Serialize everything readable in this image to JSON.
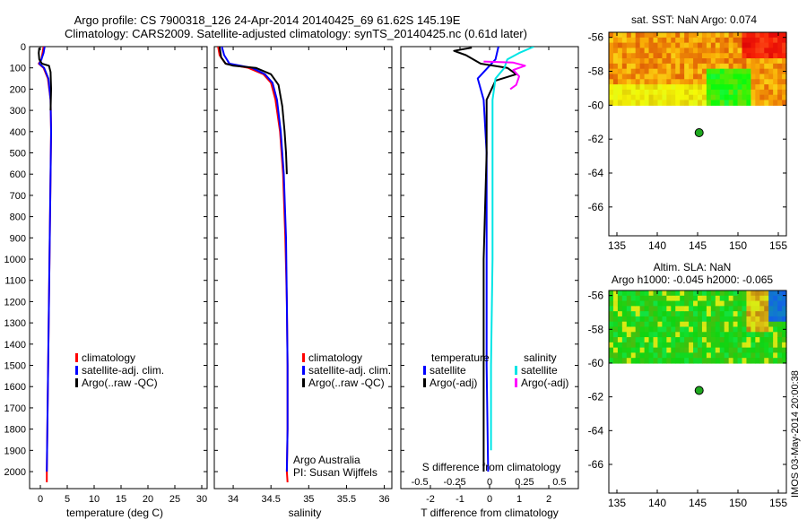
{
  "header": {
    "line1": "Argo profile: CS 7900318_126 24-Apr-2014 20140425_69 61.62S 145.19E",
    "line2": "Climatology: CARS2009. Satellite-adjusted climatology: synTS_20140425.nc (0.61d later)"
  },
  "side_label": "IMOS 03-May-2014 20:00:38",
  "colors": {
    "climatology": "#ff0000",
    "satellite": "#0000ff",
    "argo": "#000000",
    "salinity_sat": "#00e5e5",
    "salinity_argo": "#ff00ff",
    "marker": "#1ea81e"
  },
  "chart_data": [
    {
      "type": "line",
      "name": "temperature-panel",
      "xlabel": "temperature (deg C)",
      "xlim": [
        -2,
        31
      ],
      "xticks": [
        0,
        5,
        10,
        15,
        20,
        25,
        30
      ],
      "ylim": [
        2080,
        0
      ],
      "yticks": [
        0,
        100,
        200,
        300,
        400,
        500,
        600,
        700,
        800,
        900,
        1000,
        1100,
        1200,
        1300,
        1400,
        1500,
        1600,
        1700,
        1800,
        1900,
        2000
      ],
      "legend": [
        "climatology",
        "satellite-adj. clim.",
        "Argo(..raw -QC)"
      ],
      "series": [
        {
          "name": "climatology",
          "color": "#ff0000",
          "points": [
            [
              0.6,
              0
            ],
            [
              0.4,
              30
            ],
            [
              0.2,
              60
            ],
            [
              -0.3,
              80
            ],
            [
              0.6,
              100
            ],
            [
              1.4,
              150
            ],
            [
              1.9,
              250
            ],
            [
              2.0,
              400
            ],
            [
              1.9,
              600
            ],
            [
              1.8,
              800
            ],
            [
              1.7,
              1000
            ],
            [
              1.6,
              1200
            ],
            [
              1.5,
              1400
            ],
            [
              1.4,
              1600
            ],
            [
              1.3,
              1800
            ],
            [
              1.2,
              2000
            ],
            [
              1.2,
              2050
            ]
          ]
        },
        {
          "name": "satellite-adj. clim.",
          "color": "#0000ff",
          "points": [
            [
              0.8,
              0
            ],
            [
              0.6,
              30
            ],
            [
              0.2,
              60
            ],
            [
              -0.2,
              80
            ],
            [
              0.7,
              100
            ],
            [
              1.5,
              150
            ],
            [
              1.9,
              250
            ],
            [
              2.0,
              400
            ],
            [
              1.9,
              600
            ],
            [
              1.8,
              800
            ],
            [
              1.7,
              1000
            ],
            [
              1.6,
              1200
            ],
            [
              1.5,
              1400
            ],
            [
              1.4,
              1600
            ],
            [
              1.3,
              1800
            ],
            [
              1.2,
              2000
            ]
          ]
        },
        {
          "name": "Argo(..raw -QC)",
          "color": "#000000",
          "points": [
            [
              -0.2,
              5
            ],
            [
              -0.3,
              30
            ],
            [
              -0.2,
              60
            ],
            [
              0.3,
              80
            ],
            [
              1.6,
              90
            ],
            [
              1.9,
              120
            ],
            [
              2.0,
              200
            ],
            [
              1.9,
              300
            ]
          ]
        }
      ]
    },
    {
      "type": "line",
      "name": "salinity-panel",
      "xlabel": "salinity",
      "xlim": [
        33.75,
        36.1
      ],
      "xticks": [
        34,
        34.5,
        35,
        35.5,
        36
      ],
      "ylim": [
        2080,
        0
      ],
      "legend": [
        "climatology",
        "satellite-adj. clim.",
        "Argo(..raw -QC)"
      ],
      "annotations": [
        "Argo Australia",
        "PI: Susan Wijffels"
      ],
      "series": [
        {
          "name": "climatology",
          "color": "#ff0000",
          "points": [
            [
              33.8,
              0
            ],
            [
              33.82,
              40
            ],
            [
              33.9,
              80
            ],
            [
              34.2,
              100
            ],
            [
              34.4,
              130
            ],
            [
              34.5,
              170
            ],
            [
              34.56,
              250
            ],
            [
              34.62,
              400
            ],
            [
              34.66,
              600
            ],
            [
              34.69,
              900
            ],
            [
              34.71,
              1200
            ],
            [
              34.72,
              1500
            ],
            [
              34.72,
              1800
            ],
            [
              34.71,
              2000
            ],
            [
              34.72,
              2050
            ]
          ]
        },
        {
          "name": "satellite-adj. clim.",
          "color": "#0000ff",
          "points": [
            [
              33.85,
              0
            ],
            [
              33.88,
              40
            ],
            [
              33.95,
              80
            ],
            [
              34.25,
              100
            ],
            [
              34.42,
              130
            ],
            [
              34.52,
              170
            ],
            [
              34.58,
              250
            ],
            [
              34.63,
              400
            ],
            [
              34.67,
              600
            ],
            [
              34.7,
              900
            ],
            [
              34.71,
              1200
            ],
            [
              34.72,
              1500
            ],
            [
              34.72,
              1800
            ],
            [
              34.71,
              2000
            ]
          ]
        },
        {
          "name": "Argo(..raw -QC)",
          "color": "#000000",
          "points": [
            [
              33.82,
              0
            ],
            [
              33.84,
              50
            ],
            [
              33.9,
              80
            ],
            [
              34.0,
              90
            ],
            [
              34.3,
              100
            ],
            [
              34.5,
              130
            ],
            [
              34.6,
              180
            ],
            [
              34.65,
              280
            ],
            [
              34.68,
              400
            ],
            [
              34.7,
              500
            ],
            [
              34.71,
              600
            ]
          ]
        }
      ]
    },
    {
      "type": "line",
      "name": "difference-panel",
      "xlabel": "T difference from climatology",
      "xlim": [
        -3,
        3
      ],
      "xticks": [
        -2,
        -1,
        0,
        1,
        2
      ],
      "xlabel_secondary": "S difference from climatology",
      "secondary_ticks": [
        -0.5,
        -0.25,
        0,
        0.25,
        0.5
      ],
      "ylim": [
        2080,
        0
      ],
      "legend_headers": [
        "temperature",
        "salinity"
      ],
      "legend": [
        "satellite",
        "Argo(-adj)",
        "satellite",
        "Argo(-adj)"
      ],
      "series": [
        {
          "name": "temperature-satellite",
          "color": "#0000ff",
          "points": [
            [
              0.3,
              0
            ],
            [
              0.2,
              60
            ],
            [
              -0.4,
              150
            ],
            [
              -0.2,
              250
            ],
            [
              -0.1,
              500
            ],
            [
              -0.1,
              1000
            ],
            [
              -0.1,
              1500
            ],
            [
              -0.05,
              2000
            ]
          ]
        },
        {
          "name": "temperature-argo",
          "color": "#000000",
          "points": [
            [
              -0.6,
              5
            ],
            [
              -1.2,
              20
            ],
            [
              -0.8,
              40
            ],
            [
              -0.3,
              80
            ],
            [
              0.6,
              100
            ],
            [
              0.9,
              130
            ],
            [
              0.2,
              160
            ],
            [
              -0.1,
              250
            ],
            [
              -0.1,
              500
            ],
            [
              -0.2,
              1000
            ],
            [
              -0.2,
              1500
            ],
            [
              -0.2,
              2000
            ]
          ]
        },
        {
          "name": "salinity-satellite",
          "color": "#00e5e5",
          "points": [
            [
              1.5,
              0
            ],
            [
              1.0,
              30
            ],
            [
              0.6,
              60
            ],
            [
              0.5,
              100
            ],
            [
              0.2,
              150
            ],
            [
              0.1,
              250
            ],
            [
              0.1,
              500
            ],
            [
              0.1,
              1000
            ],
            [
              0.05,
              1500
            ],
            [
              0.05,
              1900
            ]
          ]
        },
        {
          "name": "salinity-argo",
          "color": "#ff00ff",
          "points": [
            [
              -0.2,
              70
            ],
            [
              0.8,
              75
            ],
            [
              1.2,
              90
            ],
            [
              0.8,
              110
            ],
            [
              1.0,
              140
            ],
            [
              0.9,
              180
            ],
            [
              0.7,
              200
            ]
          ]
        }
      ]
    },
    {
      "type": "heatmap",
      "name": "sst-map",
      "title": "sat. SST: NaN Argo: 0.074",
      "xlim": [
        134,
        156
      ],
      "ylim": [
        -67.7,
        -55.7
      ],
      "xticks": [
        135,
        140,
        145,
        150,
        155
      ],
      "yticks": [
        -56,
        -58,
        -60,
        -62,
        -64,
        -66
      ],
      "marker": [
        145.19,
        -61.62
      ]
    },
    {
      "type": "heatmap",
      "name": "sla-map",
      "title_line1": "Altim. SLA: NaN",
      "title_line2": "Argo h1000: -0.045 h2000: -0.065",
      "xlim": [
        134,
        156
      ],
      "ylim": [
        -67.7,
        -55.7
      ],
      "xticks": [
        135,
        140,
        145,
        150,
        155
      ],
      "yticks": [
        -56,
        -58,
        -60,
        -62,
        -64,
        -66
      ],
      "marker": [
        145.19,
        -61.62
      ]
    }
  ]
}
